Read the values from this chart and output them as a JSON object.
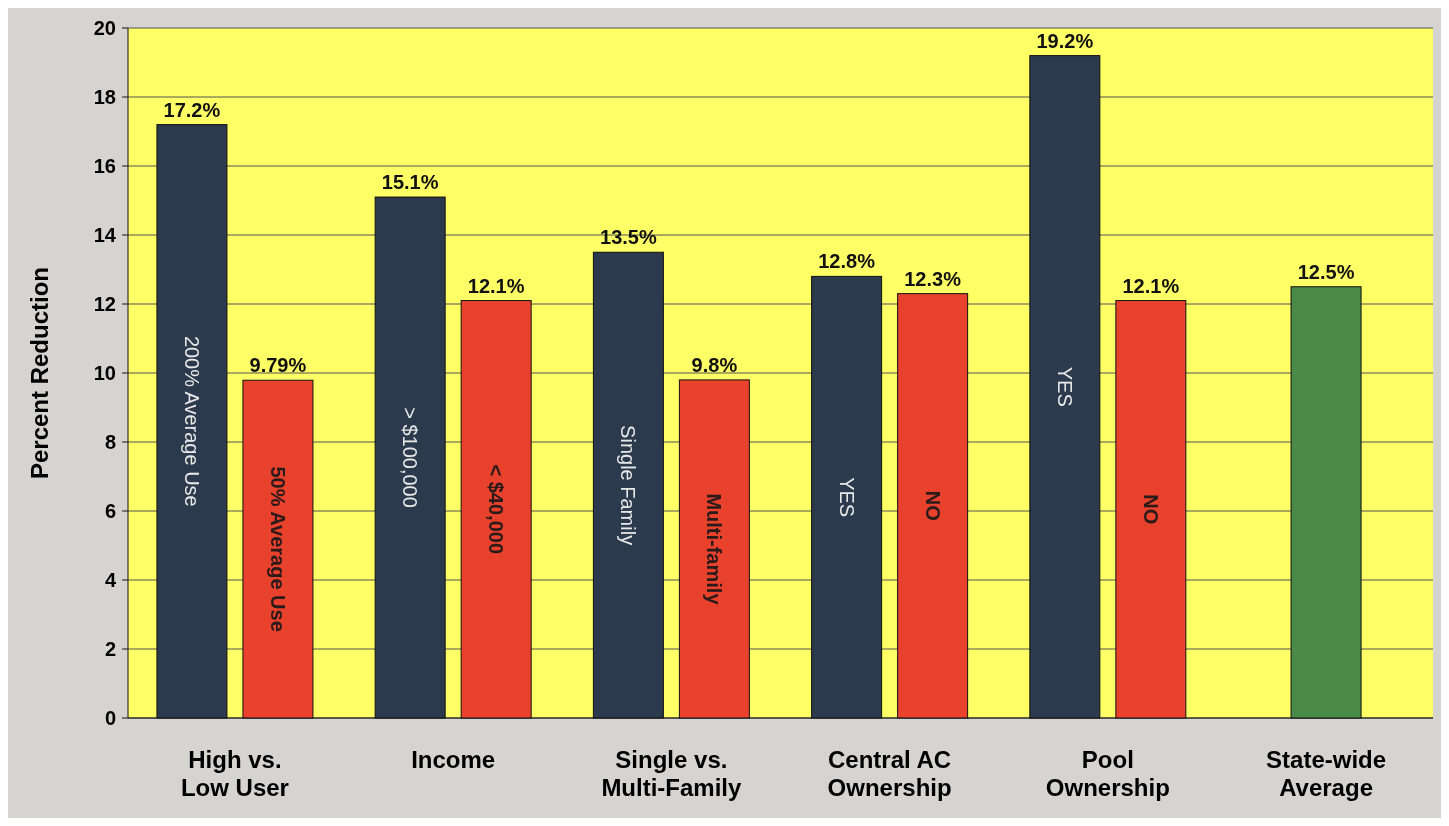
{
  "chart_data": {
    "type": "bar",
    "ylabel": "Percent Reduction",
    "categories": [
      "High vs.\nLow User",
      "Income",
      "Single vs.\nMulti-Family",
      "Central AC\nOwnership",
      "Pool\nOwnership",
      "State-wide\nAverage"
    ],
    "series": [
      {
        "color": "#2b3a4c",
        "values": [
          17.2,
          15.1,
          13.5,
          12.8,
          19.2,
          null
        ],
        "value_labels": [
          "17.2%",
          "15.1%",
          "13.5%",
          "12.8%",
          "19.2%",
          null
        ]
      },
      {
        "color": "#e8412c",
        "values": [
          9.79,
          12.1,
          9.8,
          12.3,
          12.1,
          null
        ],
        "value_labels": [
          "9.79%",
          "12.1%",
          "9.8%",
          "12.3%",
          "12.1%",
          null
        ]
      },
      {
        "color": "#4a8a48",
        "values": [
          null,
          null,
          null,
          null,
          null,
          12.5
        ],
        "value_labels": [
          null,
          null,
          null,
          null,
          null,
          "12.5%"
        ]
      }
    ],
    "annotations": [
      "200% Average Use",
      "50% Average Use",
      "> $100,000",
      "< $40,000",
      "Single Family",
      "Multi-family",
      "YES",
      "NO",
      "YES",
      "NO"
    ],
    "ylim": [
      0,
      20
    ],
    "yticks": [
      0,
      2,
      4,
      6,
      8,
      10,
      12,
      14,
      16,
      18,
      20
    ],
    "grid": "y"
  }
}
